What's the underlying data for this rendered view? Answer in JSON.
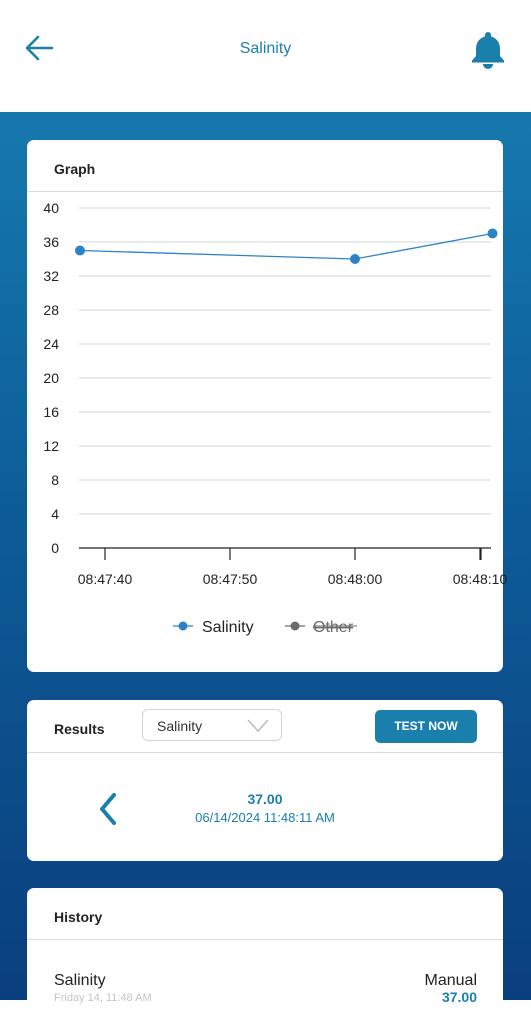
{
  "header": {
    "title": "Salinity",
    "back_icon": "arrow-left-icon",
    "bell_icon": "bell-icon"
  },
  "graph": {
    "title": "Graph"
  },
  "chart_data": {
    "type": "line",
    "title": "",
    "xlabel": "",
    "ylabel": "",
    "ylim": [
      0,
      40
    ],
    "yticks": [
      "0",
      "4",
      "8",
      "12",
      "16",
      "20",
      "24",
      "28",
      "32",
      "36",
      "40"
    ],
    "xticks": [
      "08:47:40",
      "08:47:50",
      "08:48:00",
      "08:48:10"
    ],
    "grid": true,
    "legend": "bottom",
    "series": [
      {
        "name": "Salinity",
        "color": "#2b83c6",
        "points": [
          {
            "x": "08:47:38",
            "y": 35
          },
          {
            "x": "08:48:00",
            "y": 34
          },
          {
            "x": "08:48:11",
            "y": 37
          }
        ]
      },
      {
        "name": "Other",
        "color": "#6b6b6b",
        "hidden": true,
        "points": []
      }
    ]
  },
  "results": {
    "title": "Results",
    "dropdown_selected": "Salinity",
    "test_button": "TEST NOW",
    "value": "37.00",
    "date": "06/14/2024 11:48:11 AM"
  },
  "history": {
    "title": "History",
    "item_name": "Salinity",
    "item_sub": "Friday 14, 11:48 AM",
    "item_type": "Manual",
    "item_value": "37.00"
  },
  "colors": {
    "accent": "#1a7fab",
    "gradient_top": "#1679ae",
    "gradient_bottom": "#0a3f7d"
  }
}
